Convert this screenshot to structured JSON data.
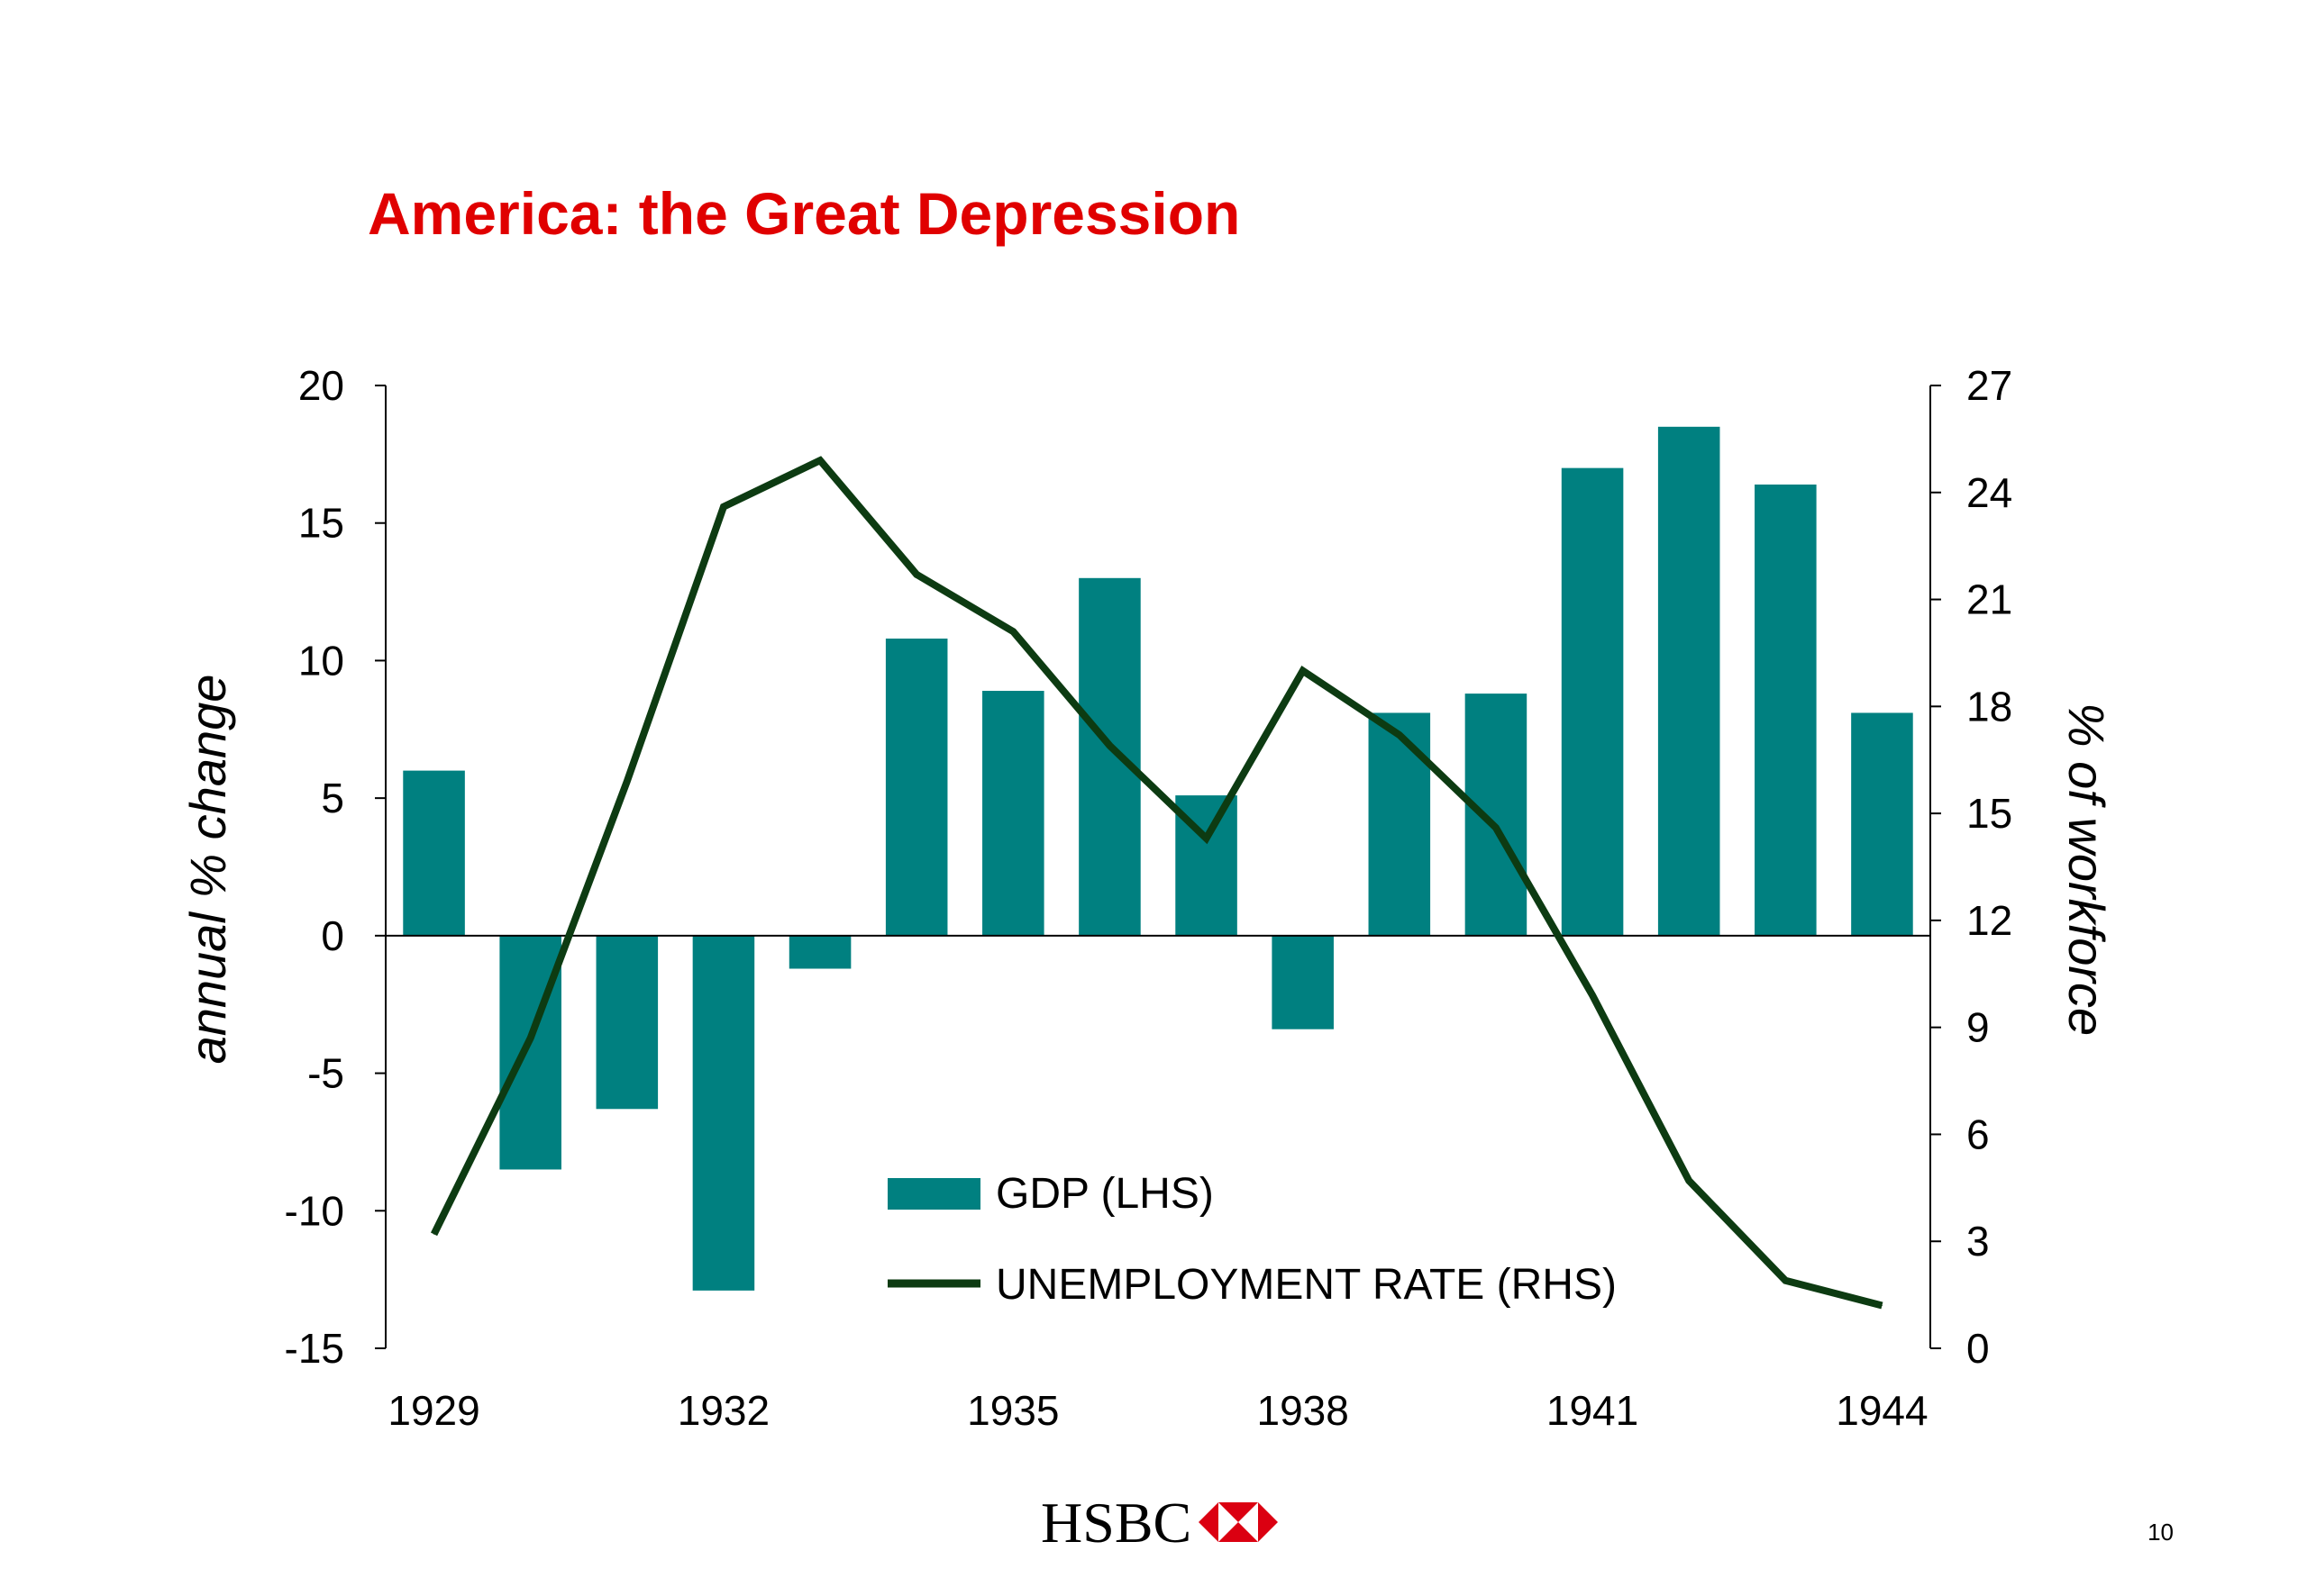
{
  "colors": {
    "title": "#e00000",
    "bar": "#008080",
    "line": "#0d3b12",
    "axis": "#000000",
    "logo_red": "#db0011"
  },
  "footer": {
    "logo_text": "HSBC",
    "logo_icon": "hsbc-hexagon-icon",
    "page_number": "10"
  },
  "chart_data": {
    "type": "bar",
    "title": "America: the Great Depression",
    "ylabel": "annual % change",
    "y2label": "% of workforce",
    "categories": [
      "1929",
      "1930",
      "1931",
      "1932",
      "1933",
      "1934",
      "1935",
      "1936",
      "1937",
      "1938",
      "1939",
      "1940",
      "1941",
      "1942",
      "1943",
      "1944"
    ],
    "x_tick_labels": [
      "1929",
      "1932",
      "1935",
      "1938",
      "1941",
      "1944"
    ],
    "ylim": [
      -15,
      20
    ],
    "yticks": [
      "20",
      "15",
      "10",
      "5",
      "0",
      "-5",
      "-10",
      "-15"
    ],
    "y2lim": [
      0,
      27
    ],
    "y2ticks": [
      "27",
      "24",
      "21",
      "18",
      "15",
      "12",
      "9",
      "6",
      "3",
      "0"
    ],
    "grid": false,
    "legend_position": "bottom-center",
    "series": [
      {
        "name": "GDP (LHS)",
        "type": "bar",
        "axis": "left",
        "values": [
          6.0,
          -8.5,
          -6.3,
          -12.9,
          -1.2,
          10.8,
          8.9,
          13.0,
          5.1,
          -3.4,
          8.1,
          8.8,
          17.0,
          18.5,
          16.4,
          8.1
        ]
      },
      {
        "name": "UNEMPLOYMENT RATE (RHS)",
        "type": "line",
        "axis": "right",
        "values": [
          3.2,
          8.7,
          15.9,
          23.6,
          24.9,
          21.7,
          20.1,
          16.9,
          14.3,
          19.0,
          17.2,
          14.6,
          9.9,
          4.7,
          1.9,
          1.2
        ]
      }
    ]
  }
}
